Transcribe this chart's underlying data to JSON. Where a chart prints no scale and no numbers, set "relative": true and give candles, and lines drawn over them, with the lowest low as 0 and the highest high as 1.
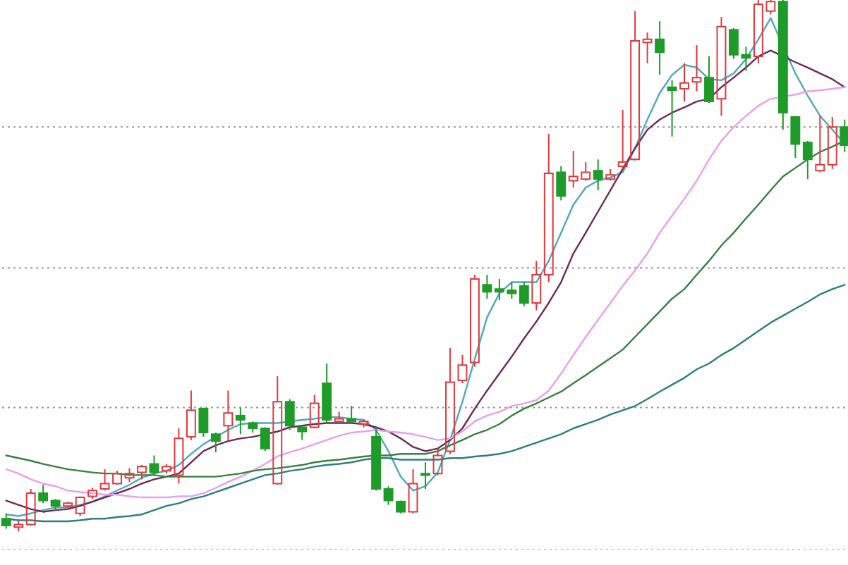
{
  "chart_data": {
    "type": "candlestick",
    "relative": true,
    "categories": [
      null,
      null,
      null,
      null,
      null,
      null,
      null,
      null,
      null,
      null,
      null,
      null,
      null,
      null,
      null,
      null,
      null,
      null,
      null,
      null,
      null,
      null,
      null,
      null,
      null,
      null,
      null,
      null,
      null,
      null,
      null,
      null,
      null,
      null,
      null,
      null,
      null,
      null,
      null,
      null,
      null,
      null,
      null,
      null,
      null,
      null,
      null,
      null,
      null,
      null,
      null,
      null,
      null,
      null,
      null,
      null,
      null,
      null,
      null,
      null,
      null,
      null,
      null,
      null,
      null,
      null,
      null,
      null,
      null
    ],
    "ohlc": [
      [
        0.024,
        0.034,
        0.005,
        0.011
      ],
      [
        0.008,
        0.019,
        0,
        0.013
      ],
      [
        0.013,
        0.08,
        0.011,
        0.072
      ],
      [
        0.072,
        0.088,
        0.053,
        0.058
      ],
      [
        0.058,
        0.061,
        0.04,
        0.048
      ],
      [
        0.048,
        0.056,
        0.045,
        0.053
      ],
      [
        0.034,
        0.066,
        0.029,
        0.064
      ],
      [
        0.066,
        0.082,
        0.061,
        0.077
      ],
      [
        0.08,
        0.117,
        0.077,
        0.09
      ],
      [
        0.09,
        0.114,
        0.088,
        0.109
      ],
      [
        0.101,
        0.119,
        0.093,
        0.109
      ],
      [
        0.111,
        0.125,
        0.098,
        0.122
      ],
      [
        0.127,
        0.143,
        0.106,
        0.111
      ],
      [
        0.114,
        0.127,
        0.109,
        0.122
      ],
      [
        0.106,
        0.194,
        0.09,
        0.175
      ],
      [
        0.178,
        0.265,
        0.172,
        0.228
      ],
      [
        0.231,
        0.233,
        0.178,
        0.186
      ],
      [
        0.183,
        0.186,
        0.149,
        0.17
      ],
      [
        0.199,
        0.265,
        0.172,
        0.223
      ],
      [
        0.218,
        0.233,
        0.183,
        0.21
      ],
      [
        0.204,
        0.207,
        0.186,
        0.194
      ],
      [
        0.194,
        0.196,
        0.151,
        0.156
      ],
      [
        0.09,
        0.292,
        0.088,
        0.244
      ],
      [
        0.244,
        0.249,
        0.191,
        0.199
      ],
      [
        0.196,
        0.199,
        0.172,
        0.188
      ],
      [
        0.196,
        0.257,
        0.194,
        0.241
      ],
      [
        0.279,
        0.316,
        0.204,
        0.21
      ],
      [
        0.207,
        0.225,
        0.204,
        0.212
      ],
      [
        0.212,
        0.236,
        0.204,
        0.207
      ],
      [
        0.202,
        0.21,
        0.196,
        0.207
      ],
      [
        0.178,
        0.196,
        0.077,
        0.08
      ],
      [
        0.08,
        0.085,
        0.05,
        0.058
      ],
      [
        0.056,
        0.058,
        0.034,
        0.037
      ],
      [
        0.037,
        0.117,
        0.034,
        0.09
      ],
      [
        0.109,
        0.13,
        0.08,
        0.106
      ],
      [
        0.109,
        0.156,
        0.106,
        0.143
      ],
      [
        0.151,
        0.345,
        0.146,
        0.281
      ],
      [
        0.284,
        0.332,
        0.279,
        0.313
      ],
      [
        0.318,
        0.483,
        0.31,
        0.475
      ],
      [
        0.464,
        0.483,
        0.438,
        0.451
      ],
      [
        0.456,
        0.475,
        0.435,
        0.451
      ],
      [
        0.454,
        0.469,
        0.438,
        0.448
      ],
      [
        0.462,
        0.469,
        0.424,
        0.43
      ],
      [
        0.43,
        0.509,
        0.416,
        0.483
      ],
      [
        0.483,
        0.748,
        0.469,
        0.674
      ],
      [
        0.676,
        0.687,
        0.623,
        0.631
      ],
      [
        0.66,
        0.716,
        0.647,
        0.668
      ],
      [
        0.663,
        0.695,
        0.66,
        0.676
      ],
      [
        0.679,
        0.7,
        0.642,
        0.663
      ],
      [
        0.663,
        0.682,
        0.66,
        0.671
      ],
      [
        0.687,
        0.793,
        0.682,
        0.695
      ],
      [
        0.7,
        0.979,
        0.698,
        0.923
      ],
      [
        0.92,
        0.939,
        0.881,
        0.926
      ],
      [
        0.926,
        0.96,
        0.859,
        0.902
      ],
      [
        0.836,
        0.849,
        0.743,
        0.83
      ],
      [
        0.833,
        0.881,
        0.809,
        0.844
      ],
      [
        0.846,
        0.915,
        0.828,
        0.854
      ],
      [
        0.854,
        0.894,
        0.806,
        0.809
      ],
      [
        0.814,
        0.968,
        0.782,
        0.95
      ],
      [
        0.944,
        0.947,
        0.889,
        0.897
      ],
      [
        0.897,
        0.912,
        0.867,
        0.891
      ],
      [
        0.894,
        1,
        0.881,
        0.992
      ],
      [
        0.979,
        1,
        0.973,
        0.997
      ],
      [
        0.997,
        1,
        0.756,
        0.788
      ],
      [
        0.78,
        0.782,
        0.703,
        0.729
      ],
      [
        0.732,
        0.735,
        0.663,
        0.7
      ],
      [
        0.679,
        0.782,
        0.676,
        0.69
      ],
      [
        0.69,
        0.78,
        0.682,
        0.761
      ],
      [
        0.761,
        0.775,
        0.714,
        0.727
      ]
    ],
    "colors": [
      "#1e9b28",
      "#e0393e",
      "#e0393e",
      "#1e9b28",
      "#1e9b28",
      "#e0393e",
      "#e0393e",
      "#e0393e",
      "#e0393e",
      "#e0393e",
      "#e0393e",
      "#e0393e",
      "#1e9b28",
      "#e0393e",
      "#e0393e",
      "#e0393e",
      "#1e9b28",
      "#1e9b28",
      "#e0393e",
      "#1e9b28",
      "#1e9b28",
      "#1e9b28",
      "#e0393e",
      "#1e9b28",
      "#1e9b28",
      "#e0393e",
      "#1e9b28",
      "#e0393e",
      "#1e9b28",
      "#e0393e",
      "#1e9b28",
      "#1e9b28",
      "#1e9b28",
      "#e0393e",
      "#1e9b28",
      "#e0393e",
      "#e0393e",
      "#e0393e",
      "#e0393e",
      "#1e9b28",
      "#1e9b28",
      "#1e9b28",
      "#1e9b28",
      "#e0393e",
      "#e0393e",
      "#1e9b28",
      "#e0393e",
      "#e0393e",
      "#1e9b28",
      "#e0393e",
      "#e0393e",
      "#e0393e",
      "#e0393e",
      "#1e9b28",
      "#1e9b28",
      "#e0393e",
      "#e0393e",
      "#1e9b28",
      "#e0393e",
      "#1e9b28",
      "#1e9b28",
      "#e0393e",
      "#e0393e",
      "#1e9b28",
      "#1e9b28",
      "#1e9b28",
      "#e0393e",
      "#e0393e",
      "#1e9b28"
    ],
    "series": [
      {
        "type": "line",
        "color": "#52a8b8",
        "values": [
          0.032,
          0.029,
          0.034,
          0.04,
          0.045,
          0.045,
          0.05,
          0.056,
          0.066,
          0.077,
          0.088,
          0.101,
          0.109,
          0.114,
          0.125,
          0.146,
          0.164,
          0.178,
          0.191,
          0.202,
          0.204,
          0.204,
          0.204,
          0.207,
          0.21,
          0.212,
          0.215,
          0.215,
          0.212,
          0.21,
          0.191,
          0.151,
          0.103,
          0.077,
          0.085,
          0.111,
          0.172,
          0.244,
          0.324,
          0.403,
          0.448,
          0.469,
          0.469,
          0.469,
          0.509,
          0.562,
          0.615,
          0.647,
          0.66,
          0.666,
          0.676,
          0.721,
          0.775,
          0.825,
          0.859,
          0.878,
          0.873,
          0.851,
          0.849,
          0.862,
          0.889,
          0.926,
          0.966,
          null,
          0.862,
          0.82,
          0.782,
          0.756,
          0.729
        ]
      },
      {
        "type": "line",
        "color": "#6b2a5a",
        "values": [
          0.058,
          0.05,
          0.042,
          0.037,
          0.04,
          0.042,
          0.048,
          0.056,
          0.064,
          0.072,
          0.08,
          0.09,
          0.098,
          0.103,
          0.109,
          0.13,
          0.151,
          0.162,
          0.17,
          0.175,
          0.178,
          0.183,
          0.188,
          0.196,
          0.199,
          0.202,
          0.204,
          0.204,
          0.204,
          0.202,
          0.196,
          0.188,
          0.175,
          0.159,
          0.151,
          0.156,
          0.172,
          0.194,
          0.231,
          0.265,
          0.297,
          0.329,
          0.363,
          0.395,
          0.43,
          0.469,
          0.523,
          0.562,
          0.602,
          0.642,
          0.682,
          0.721,
          0.756,
          0.775,
          0.788,
          0.798,
          0.809,
          0.814,
          0.836,
          0.854,
          0.873,
          0.894,
          0.905,
          null,
          0.883,
          0.873,
          0.862,
          0.851,
          0.836
        ]
      },
      {
        "type": "line",
        "color": "#e8a0e8",
        "values": [
          0.117,
          0.109,
          0.098,
          0.09,
          0.085,
          0.077,
          0.074,
          0.072,
          0.069,
          0.069,
          0.066,
          0.064,
          0.064,
          0.064,
          0.066,
          0.066,
          0.072,
          0.082,
          0.093,
          0.103,
          0.114,
          0.127,
          0.141,
          0.149,
          0.156,
          0.164,
          0.172,
          0.18,
          0.186,
          0.188,
          0.191,
          0.188,
          0.186,
          0.183,
          0.178,
          0.172,
          0.175,
          0.188,
          0.207,
          0.218,
          0.225,
          0.236,
          0.241,
          0.247,
          0.265,
          0.297,
          0.332,
          0.366,
          0.398,
          0.43,
          0.462,
          0.491,
          0.523,
          0.562,
          0.594,
          0.626,
          0.66,
          0.7,
          0.735,
          0.761,
          0.782,
          0.801,
          0.814,
          null,
          0.822,
          0.828,
          0.83,
          0.833,
          0.836
        ]
      },
      {
        "type": "line",
        "color": "#3a7f40",
        "values": [
          0.143,
          0.138,
          0.133,
          0.127,
          0.122,
          0.117,
          0.114,
          0.111,
          0.109,
          0.109,
          0.106,
          0.106,
          0.106,
          0.103,
          0.103,
          0.103,
          0.103,
          0.103,
          0.106,
          0.109,
          0.114,
          0.117,
          0.119,
          0.122,
          0.125,
          0.13,
          0.133,
          0.135,
          0.138,
          0.141,
          0.143,
          0.143,
          0.146,
          0.146,
          0.146,
          0.151,
          0.162,
          0.172,
          0.183,
          0.191,
          0.202,
          0.218,
          0.231,
          0.241,
          0.252,
          0.263,
          0.279,
          0.294,
          0.31,
          0.326,
          0.342,
          0.366,
          0.39,
          0.414,
          0.438,
          0.456,
          0.483,
          0.509,
          0.538,
          0.562,
          0.589,
          0.615,
          0.642,
          0.668,
          0.684,
          0.7,
          0.714,
          0.724,
          0.735
        ]
      },
      {
        "type": "line",
        "color": "#2f7d80",
        "values": [
          0.024,
          0.021,
          0.021,
          0.019,
          0.019,
          0.019,
          0.021,
          0.024,
          0.024,
          0.027,
          0.029,
          0.032,
          0.04,
          0.048,
          0.053,
          0.061,
          0.066,
          0.074,
          0.082,
          0.09,
          0.098,
          0.106,
          0.109,
          0.114,
          0.117,
          0.122,
          0.125,
          0.127,
          0.13,
          0.135,
          0.138,
          0.138,
          0.135,
          0.135,
          0.135,
          0.135,
          0.138,
          0.138,
          0.141,
          0.143,
          0.146,
          0.151,
          0.159,
          0.167,
          0.175,
          0.183,
          0.194,
          0.202,
          0.21,
          0.22,
          0.228,
          0.236,
          0.249,
          0.263,
          0.276,
          0.289,
          0.305,
          0.316,
          0.332,
          0.345,
          0.361,
          0.377,
          0.393,
          0.406,
          0.419,
          0.432,
          0.446,
          0.456,
          0.464
        ]
      }
    ],
    "ref_lines": [
      {
        "axis": "y",
        "value": 0.761,
        "color": "#9a9a9a",
        "line_style": "dotted"
      },
      {
        "axis": "y",
        "value": 0.496,
        "color": "#9a9a9a",
        "line_style": "dotted"
      },
      {
        "axis": "y",
        "value": 0.233,
        "color": "#9a9a9a",
        "line_style": "dotted"
      },
      {
        "axis": "y",
        "value": -0.034,
        "color": "#9a9a9a",
        "line_style": "dotted"
      }
    ]
  }
}
